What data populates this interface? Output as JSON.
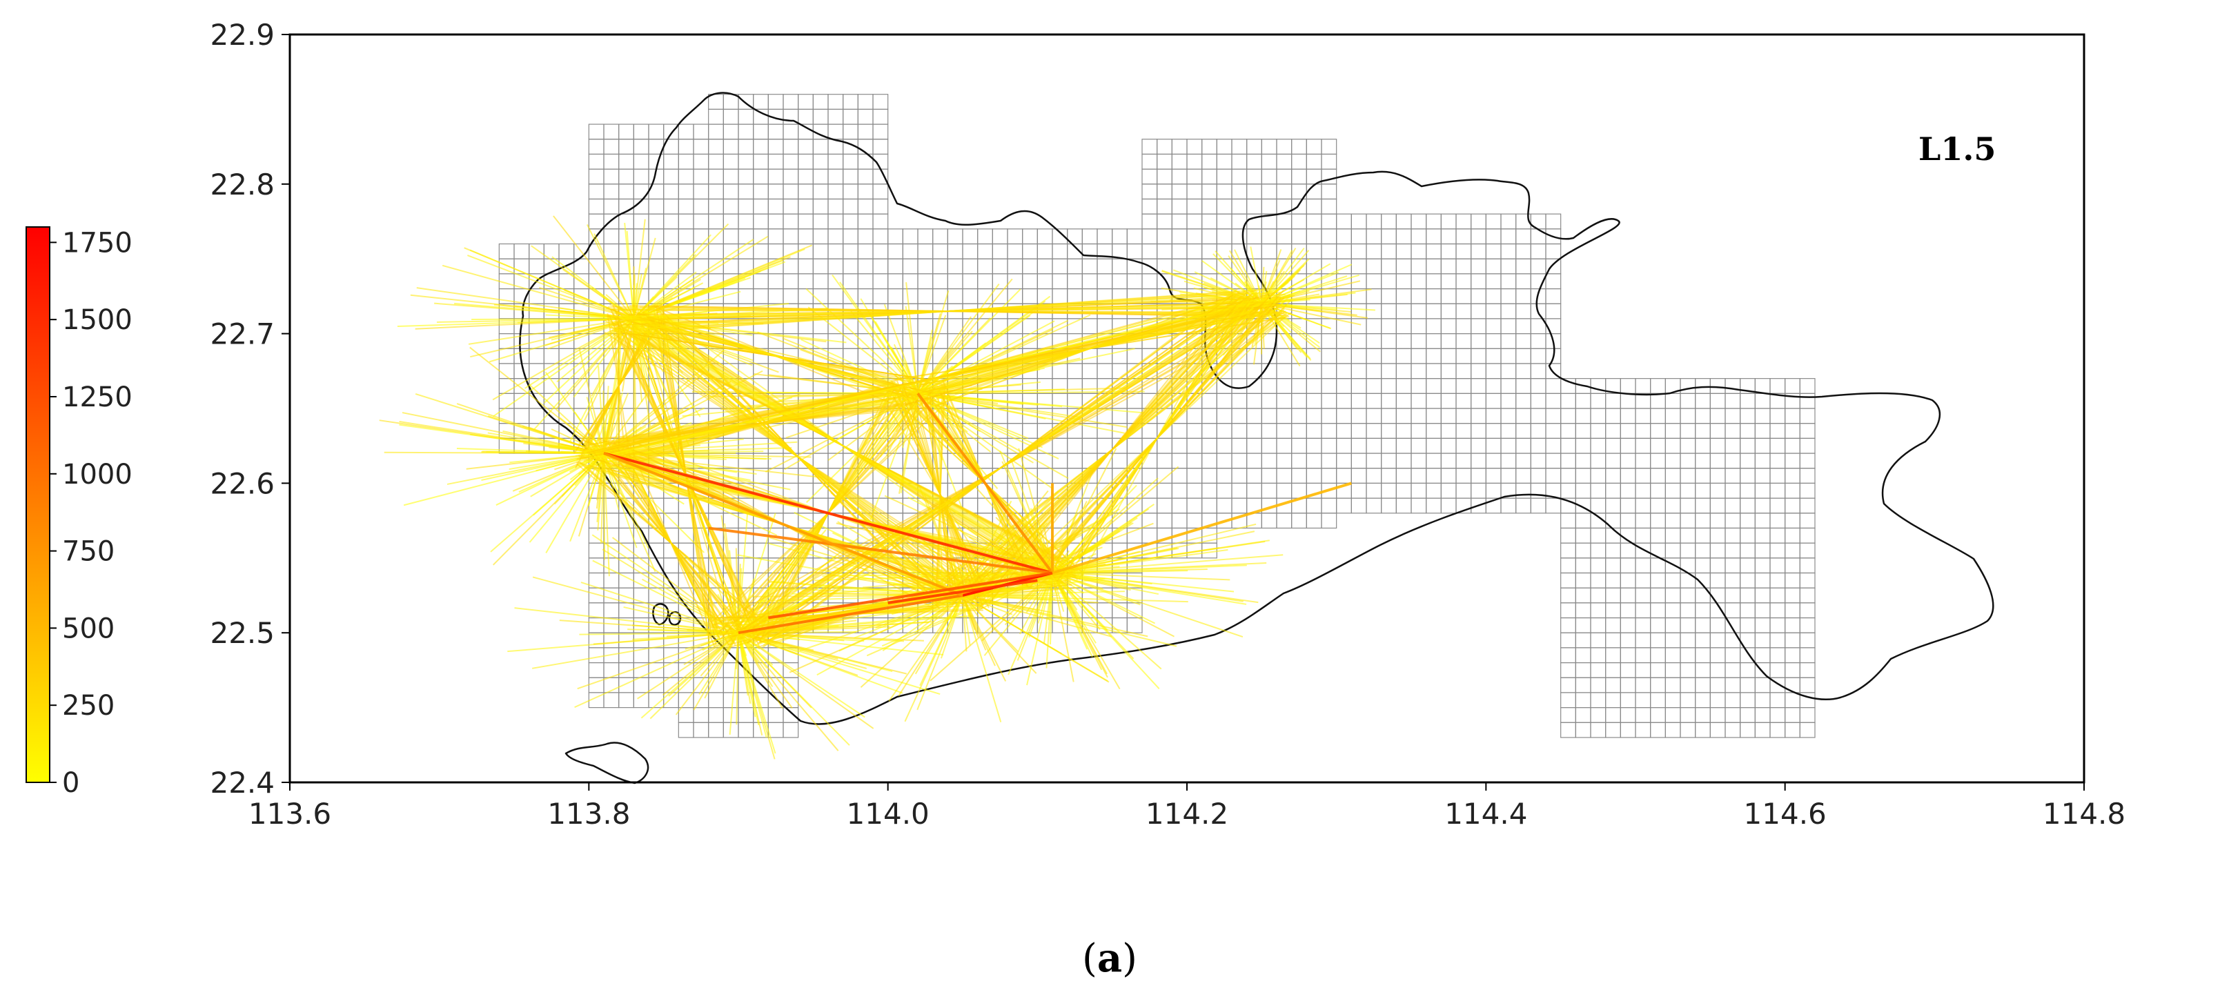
{
  "figure": {
    "panel_label": "L1.5",
    "caption_prefix": "(",
    "caption_letter": "a",
    "caption_suffix": ")"
  },
  "chart_data": {
    "type": "map",
    "xlim": [
      113.6,
      114.8
    ],
    "ylim": [
      22.4,
      22.9
    ],
    "x_ticks": [
      "113.6",
      "113.8",
      "114.0",
      "114.2",
      "114.4",
      "114.6",
      "114.8"
    ],
    "y_ticks": [
      "22.4",
      "22.5",
      "22.6",
      "22.7",
      "22.8",
      "22.9"
    ],
    "colorbar": {
      "min": 0,
      "max": 1800,
      "ticks": [
        "0",
        "250",
        "500",
        "750",
        "1000",
        "1250",
        "1500",
        "1750"
      ],
      "colors": [
        "#ffff00",
        "#ff0000"
      ]
    },
    "grid_step_deg": 0.01,
    "hubs": [
      {
        "lon": 113.81,
        "lat": 22.62
      },
      {
        "lon": 113.83,
        "lat": 22.71
      },
      {
        "lon": 113.9,
        "lat": 22.5
      },
      {
        "lon": 114.05,
        "lat": 22.525
      },
      {
        "lon": 114.11,
        "lat": 22.54
      },
      {
        "lon": 114.02,
        "lat": 22.66
      },
      {
        "lon": 114.25,
        "lat": 22.72
      }
    ],
    "flows": [
      {
        "from": [
          113.81,
          22.62
        ],
        "to": [
          114.11,
          22.54
        ],
        "value": 1500
      },
      {
        "from": [
          114.05,
          22.525
        ],
        "to": [
          114.11,
          22.54
        ],
        "value": 1750
      },
      {
        "from": [
          113.9,
          22.5
        ],
        "to": [
          114.05,
          22.525
        ],
        "value": 1000
      },
      {
        "from": [
          113.88,
          22.57
        ],
        "to": [
          114.11,
          22.54
        ],
        "value": 900
      },
      {
        "from": [
          113.81,
          22.62
        ],
        "to": [
          114.05,
          22.525
        ],
        "value": 700
      },
      {
        "from": [
          114.02,
          22.66
        ],
        "to": [
          114.11,
          22.54
        ],
        "value": 800
      },
      {
        "from": [
          114.11,
          22.6
        ],
        "to": [
          114.11,
          22.54
        ],
        "value": 600
      },
      {
        "from": [
          114.31,
          22.6
        ],
        "to": [
          114.11,
          22.54
        ],
        "value": 500
      },
      {
        "from": [
          113.92,
          22.51
        ],
        "to": [
          114.11,
          22.54
        ],
        "value": 1200
      },
      {
        "from": [
          114.0,
          22.52
        ],
        "to": [
          114.1,
          22.535
        ],
        "value": 1400
      }
    ]
  }
}
